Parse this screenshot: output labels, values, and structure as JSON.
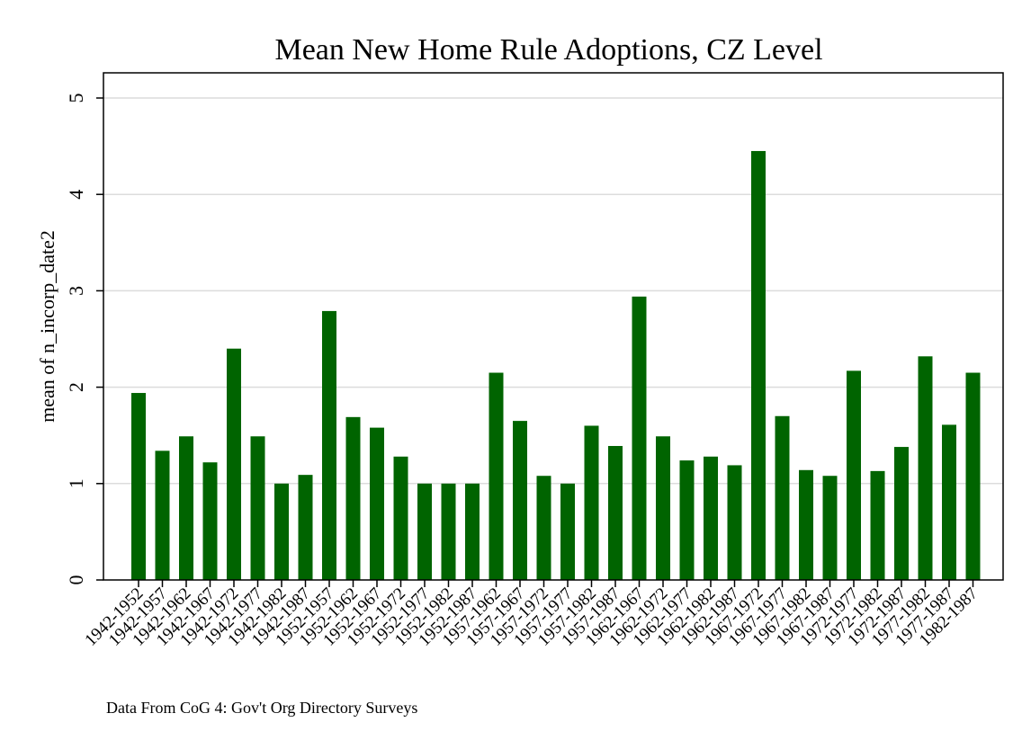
{
  "chart_data": {
    "type": "bar",
    "title": "Mean New Home Rule Adoptions, CZ Level",
    "ylabel": "mean of n_incorp_date2",
    "xlabel": "",
    "note": "Data From CoG 4: Gov't Org Directory Surveys",
    "ylim": [
      0,
      5.25
    ],
    "yticks": [
      0,
      1,
      2,
      3,
      4,
      5
    ],
    "grid": true,
    "bar_color": "#006400",
    "categories": [
      "1942-1952",
      "1942-1957",
      "1942-1962",
      "1942-1967",
      "1942-1972",
      "1942-1977",
      "1942-1982",
      "1942-1987",
      "1952-1957",
      "1952-1962",
      "1952-1967",
      "1952-1972",
      "1952-1977",
      "1952-1982",
      "1952-1987",
      "1957-1962",
      "1957-1967",
      "1957-1972",
      "1957-1977",
      "1957-1982",
      "1957-1987",
      "1962-1967",
      "1962-1972",
      "1962-1977",
      "1962-1982",
      "1962-1987",
      "1967-1972",
      "1967-1977",
      "1967-1982",
      "1967-1987",
      "1972-1977",
      "1972-1982",
      "1972-1987",
      "1977-1982",
      "1977-1987",
      "1982-1987"
    ],
    "values": [
      1.94,
      1.34,
      1.49,
      1.22,
      2.4,
      1.49,
      1.0,
      1.09,
      2.79,
      1.69,
      1.58,
      1.28,
      1.0,
      1.0,
      1.0,
      2.15,
      1.65,
      1.08,
      1.0,
      1.6,
      1.39,
      2.94,
      1.49,
      1.24,
      1.28,
      1.19,
      4.45,
      1.7,
      1.14,
      1.08,
      2.17,
      1.13,
      1.38,
      2.32,
      1.61,
      2.15
    ]
  }
}
